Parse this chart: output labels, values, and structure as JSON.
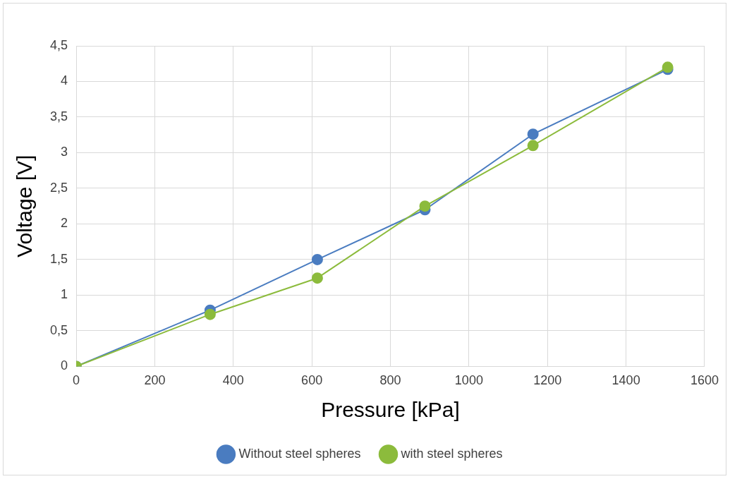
{
  "chart_data": {
    "type": "scatter",
    "xlabel": "Pressure [kPa]",
    "ylabel": "Voltage [V]",
    "xlim": [
      0,
      1600
    ],
    "xticks": [
      0,
      200,
      400,
      600,
      800,
      1000,
      1200,
      1400,
      1600
    ],
    "ylim": [
      0,
      4.5
    ],
    "yticks": [
      {
        "value": 0,
        "label": "0"
      },
      {
        "value": 0.5,
        "label": "0,5"
      },
      {
        "value": 1,
        "label": "1"
      },
      {
        "value": 1.5,
        "label": "1,5"
      },
      {
        "value": 2,
        "label": "2"
      },
      {
        "value": 2.5,
        "label": "2,5"
      },
      {
        "value": 3,
        "label": "3"
      },
      {
        "value": 3.5,
        "label": "3,5"
      },
      {
        "value": 4,
        "label": "4"
      },
      {
        "value": 4.5,
        "label": "4,5"
      }
    ],
    "grid": true,
    "legend": "bottom",
    "marker": "circle",
    "line_style": "solid",
    "series": [
      {
        "type": "line",
        "name": "Without steel spheres",
        "color": "#4a7cc0",
        "x": [
          0,
          341,
          614,
          888,
          1163,
          1506
        ],
        "values": [
          0,
          0.79,
          1.5,
          2.2,
          3.26,
          4.17
        ]
      },
      {
        "type": "line",
        "name": "with steel spheres",
        "color": "#8cbb3c",
        "x": [
          0,
          341,
          614,
          888,
          1163,
          1506
        ],
        "values": [
          0,
          0.73,
          1.24,
          2.25,
          3.1,
          4.2
        ]
      }
    ]
  }
}
